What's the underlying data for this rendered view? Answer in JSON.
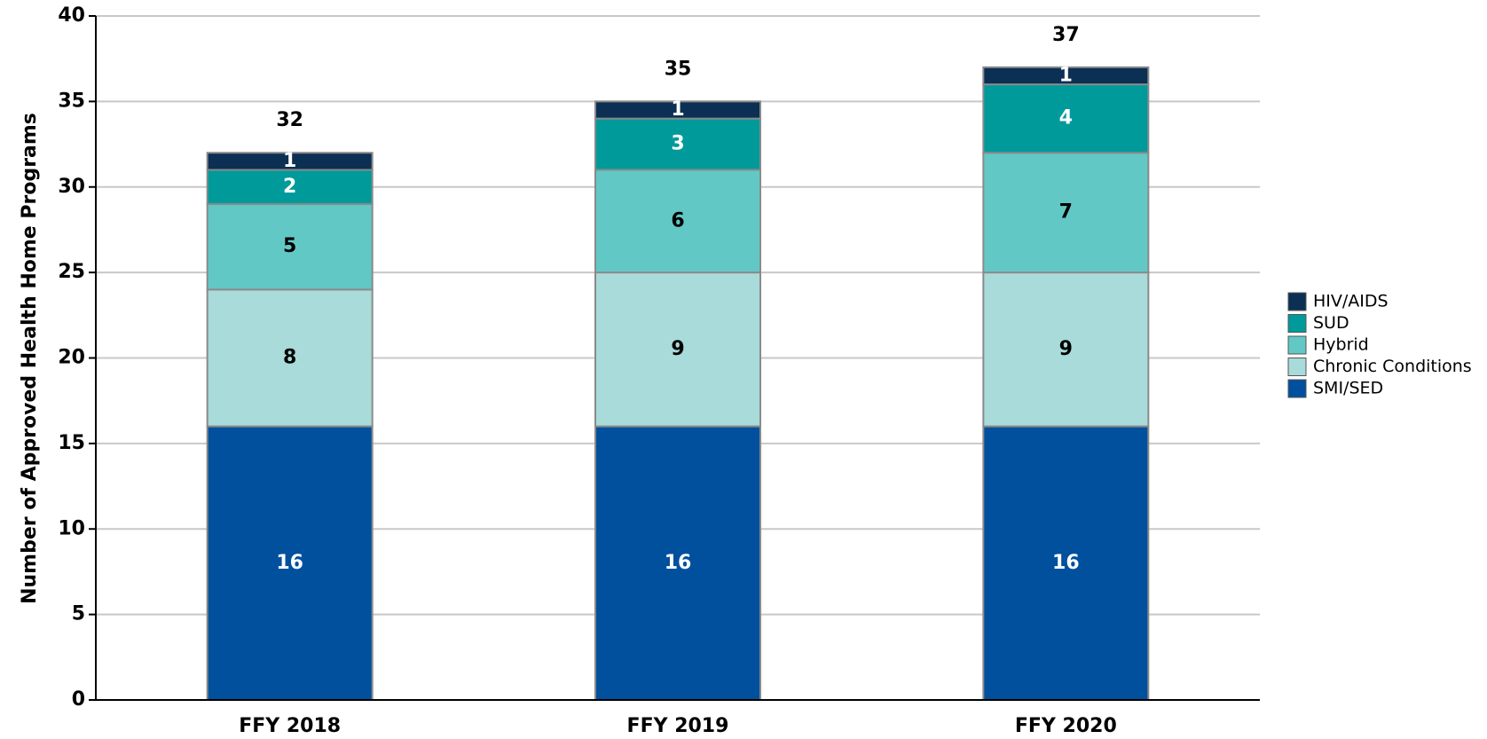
{
  "chart_data": {
    "type": "stacked_bar",
    "ylabel": "Number of Approved Health Home Programs",
    "categories": [
      "FFY 2018",
      "FFY 2019",
      "FFY 2020"
    ],
    "series": [
      {
        "name": "SMI/SED",
        "color": "#00509d",
        "values": [
          16,
          16,
          16
        ]
      },
      {
        "name": "Chronic Conditions",
        "color": "#a8dbd9",
        "values": [
          8,
          9,
          9
        ]
      },
      {
        "name": "Hybrid",
        "color": "#62c8c6",
        "values": [
          5,
          6,
          7
        ]
      },
      {
        "name": "SUD",
        "color": "#009a9a",
        "values": [
          2,
          3,
          4
        ]
      },
      {
        "name": "HIV/AIDS",
        "color": "#0c2f54",
        "values": [
          1,
          1,
          1
        ]
      }
    ],
    "totals": [
      32,
      35,
      37
    ],
    "ylim": [
      0,
      40
    ],
    "yticks": [
      0,
      5,
      10,
      15,
      20,
      25,
      30,
      35,
      40
    ],
    "grid": true,
    "legend": "right"
  }
}
